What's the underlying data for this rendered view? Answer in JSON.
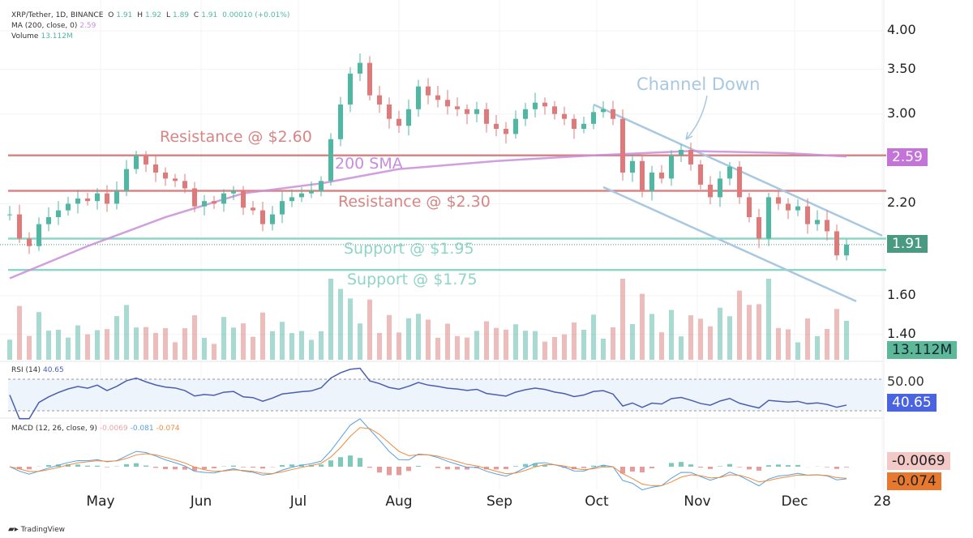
{
  "legend": {
    "symbol": "XRP/Tether, 1D, BINANCE",
    "o_label": "O",
    "o": "1.91",
    "h_label": "H",
    "h": "1.92",
    "l_label": "L",
    "l": "1.89",
    "c_label": "C",
    "c": "1.91",
    "change": "0.00010 (+0.01%)",
    "ma_label": "MA (200, close, 0)",
    "ma_value": "2.59",
    "volume_label": "Volume",
    "volume_value": "13.112M",
    "rsi_label": "RSI (14)",
    "rsi_value": "40.65",
    "macd_label": "MACD (12, 26, close, 9)",
    "macd_hist": "-0.0069",
    "macd_line": "-0.081",
    "macd_signal": "-0.074"
  },
  "annotations": {
    "resistance_260": "Resistance @ $2.60",
    "resistance_230": "Resistance @ $2.30",
    "sma_label": "200 SMA",
    "support_195": "Support @ $1.95",
    "support_175": "Support @ $1.75",
    "channel": "Channel Down"
  },
  "price_tags": {
    "ma": "2.59",
    "last": "1.91",
    "volume": "13.112M",
    "rsi": "40.65",
    "rsi_mid": "50.00",
    "macd_hist": "-0.0069",
    "macd_signal": "-0.074"
  },
  "branding": {
    "logo": "TradingView"
  },
  "colors": {
    "up": "#4fb8a3",
    "down": "#e07a7a",
    "sma": "#c98ddb",
    "resistance": "#d98585",
    "support": "#8fd5c6",
    "channel": "#a8c8e2",
    "rsi": "#4a5fb0",
    "macd": "#5a9fe0",
    "signal": "#f08a3c"
  },
  "chart_data": {
    "type": "candlestick",
    "title": "XRP/Tether, 1D, BINANCE",
    "y_scale": "log",
    "yticks": [
      "4.00",
      "3.50",
      "3.00",
      "2.20",
      "1.60",
      "1.40"
    ],
    "ylim": [
      1.4,
      4.2
    ],
    "xticks": [
      {
        "label": "May",
        "date": "May 1"
      },
      {
        "label": "Jun",
        "date": "Jun 1"
      },
      {
        "label": "Jul",
        "date": "Jul 1"
      },
      {
        "label": "Aug",
        "date": "Aug 1"
      },
      {
        "label": "Sep",
        "date": "Sep 1"
      },
      {
        "label": "Oct",
        "date": "Oct 1"
      },
      {
        "label": "Nov",
        "date": "Nov 1"
      },
      {
        "label": "Dec",
        "date": "Dec 1"
      },
      {
        "label": "28",
        "date": "Dec 28"
      }
    ],
    "dates": [
      "Apr 3",
      "Apr 6",
      "Apr 9",
      "Apr 12",
      "Apr 15",
      "Apr 18",
      "Apr 21",
      "Apr 24",
      "Apr 27",
      "Apr 30",
      "May 3",
      "May 6",
      "May 9",
      "May 12",
      "May 15",
      "May 18",
      "May 21",
      "May 24",
      "May 27",
      "May 30",
      "Jun 2",
      "Jun 5",
      "Jun 8",
      "Jun 11",
      "Jun 14",
      "Jun 17",
      "Jun 20",
      "Jun 23",
      "Jun 26",
      "Jun 29",
      "Jul 2",
      "Jul 5",
      "Jul 8",
      "Jul 11",
      "Jul 14",
      "Jul 17",
      "Jul 20",
      "Jul 23",
      "Jul 26",
      "Jul 29",
      "Aug 1",
      "Aug 4",
      "Aug 7",
      "Aug 10",
      "Aug 13",
      "Aug 16",
      "Aug 19",
      "Aug 22",
      "Aug 25",
      "Aug 28",
      "Aug 31",
      "Sep 3",
      "Sep 6",
      "Sep 9",
      "Sep 12",
      "Sep 15",
      "Sep 18",
      "Sep 21",
      "Sep 24",
      "Sep 27",
      "Sep 30",
      "Oct 3",
      "Oct 6",
      "Oct 9",
      "Oct 12",
      "Oct 15",
      "Oct 18",
      "Oct 21",
      "Oct 24",
      "Oct 27",
      "Oct 30",
      "Nov 2",
      "Nov 5",
      "Nov 8",
      "Nov 11",
      "Nov 14",
      "Nov 17",
      "Nov 20",
      "Nov 23",
      "Nov 26",
      "Nov 29",
      "Dec 2",
      "Dec 5",
      "Dec 8",
      "Dec 11",
      "Dec 14",
      "Dec 17"
    ],
    "close": [
      2.12,
      1.95,
      1.9,
      2.05,
      2.1,
      2.15,
      2.2,
      2.24,
      2.22,
      2.28,
      2.2,
      2.3,
      2.48,
      2.6,
      2.52,
      2.45,
      2.4,
      2.38,
      2.32,
      2.18,
      2.22,
      2.2,
      2.28,
      2.3,
      2.17,
      2.15,
      2.05,
      2.12,
      2.22,
      2.25,
      2.28,
      2.3,
      2.38,
      2.75,
      3.1,
      3.45,
      3.58,
      3.2,
      3.1,
      2.95,
      2.88,
      3.05,
      3.3,
      3.2,
      3.15,
      3.08,
      3.05,
      3.0,
      3.05,
      2.9,
      2.85,
      2.8,
      2.95,
      3.05,
      3.12,
      3.08,
      3.0,
      2.95,
      2.85,
      2.9,
      3.02,
      3.05,
      2.95,
      2.45,
      2.55,
      2.3,
      2.45,
      2.4,
      2.6,
      2.65,
      2.52,
      2.35,
      2.25,
      2.4,
      2.5,
      2.25,
      2.1,
      1.95,
      2.25,
      2.2,
      2.15,
      2.18,
      2.05,
      2.08,
      2.0,
      1.84,
      1.91
    ],
    "sma200": [
      {
        "date": "Apr 3",
        "value": 1.7
      },
      {
        "date": "Apr 27",
        "value": 1.9
      },
      {
        "date": "May 21",
        "value": 2.1
      },
      {
        "date": "Jun 14",
        "value": 2.28
      },
      {
        "date": "Jul 8",
        "value": 2.36
      },
      {
        "date": "Aug 1",
        "value": 2.48
      },
      {
        "date": "Aug 31",
        "value": 2.55
      },
      {
        "date": "Sep 30",
        "value": 2.6
      },
      {
        "date": "Oct 30",
        "value": 2.64
      },
      {
        "date": "Nov 29",
        "value": 2.62
      },
      {
        "date": "Dec 17",
        "value": 2.59
      }
    ],
    "horizontal_levels": [
      {
        "label": "Resistance @ $2.60",
        "value": 2.6
      },
      {
        "label": "Resistance @ $2.30",
        "value": 2.3
      },
      {
        "label": "Support @ $1.95",
        "value": 1.95
      },
      {
        "label": "Support @ $1.75",
        "value": 1.75
      }
    ],
    "channel": {
      "upper": [
        {
          "date": "Sep 30",
          "value": 3.1
        },
        {
          "date": "Dec 28",
          "value": 1.97
        }
      ],
      "lower": [
        {
          "date": "Oct 3",
          "value": 2.33
        },
        {
          "date": "Dec 20",
          "value": 1.57
        }
      ]
    },
    "rsi_levels": [
      30,
      50,
      70
    ]
  }
}
